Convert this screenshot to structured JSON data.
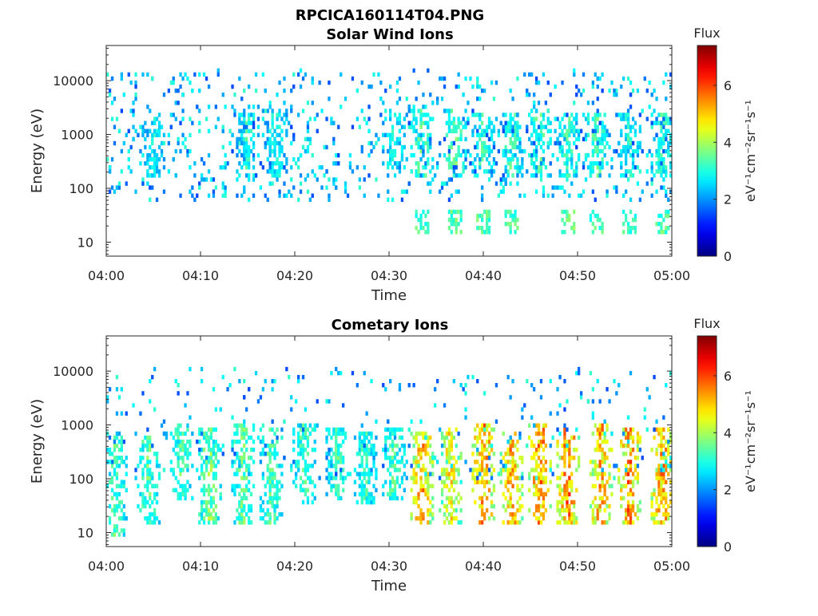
{
  "figure": {
    "filename_title": "RPCICA160114T04.PNG"
  },
  "colorbar": {
    "label": "Flux",
    "units": "eV⁻¹cm⁻²sr⁻¹s⁻¹",
    "ticks": [
      "0",
      "2",
      "4",
      "6"
    ],
    "range": [
      0,
      7.4
    ],
    "colormap": "jet"
  },
  "chart_data": [
    {
      "type": "heatmap",
      "title": "Solar Wind Ions",
      "xlabel": "Time",
      "ylabel": "Energy (eV)",
      "x_tick_labels": [
        "04:00",
        "04:10",
        "04:20",
        "04:30",
        "04:40",
        "04:50",
        "05:00"
      ],
      "y_tick_labels": [
        "10",
        "100",
        "1000",
        "10000"
      ],
      "xlim_minutes": [
        0,
        60
      ],
      "ylim": [
        5.5,
        45000
      ],
      "yscale": "log",
      "value_label": "log10 flux",
      "clim": [
        0,
        7.4
      ],
      "bursts": [
        {
          "t": 5.0,
          "e_lo": 150,
          "e_hi": 2000,
          "level": 3.0
        },
        {
          "t": 15.0,
          "e_lo": 150,
          "e_hi": 2500,
          "level": 3.3
        },
        {
          "t": 18.0,
          "e_lo": 150,
          "e_hi": 3000,
          "level": 3.1
        },
        {
          "t": 30.5,
          "e_lo": 200,
          "e_hi": 2500,
          "level": 3.2
        },
        {
          "t": 33.5,
          "e_lo": 150,
          "e_hi": 3000,
          "level": 3.6
        },
        {
          "t": 37.0,
          "e_lo": 150,
          "e_hi": 3000,
          "level": 3.7
        },
        {
          "t": 40.0,
          "e_lo": 150,
          "e_hi": 2500,
          "level": 3.4
        },
        {
          "t": 43.0,
          "e_lo": 150,
          "e_hi": 2500,
          "level": 3.5
        },
        {
          "t": 46.0,
          "e_lo": 150,
          "e_hi": 2500,
          "level": 3.6
        },
        {
          "t": 49.0,
          "e_lo": 150,
          "e_hi": 2500,
          "level": 3.4
        },
        {
          "t": 52.0,
          "e_lo": 150,
          "e_hi": 2500,
          "level": 3.6
        },
        {
          "t": 55.5,
          "e_lo": 150,
          "e_hi": 2500,
          "level": 3.3
        },
        {
          "t": 59.0,
          "e_lo": 150,
          "e_hi": 2500,
          "level": 3.4
        }
      ],
      "low_energy_bursts": [
        {
          "t": 33.5,
          "level": 3.4
        },
        {
          "t": 37.0,
          "level": 3.6
        },
        {
          "t": 40.0,
          "level": 3.5
        },
        {
          "t": 43.0,
          "level": 3.4
        },
        {
          "t": 49.0,
          "level": 3.7
        },
        {
          "t": 52.0,
          "level": 3.5
        },
        {
          "t": 55.5,
          "level": 3.3
        },
        {
          "t": 59.0,
          "level": 3.5
        }
      ]
    },
    {
      "type": "heatmap",
      "title": "Cometary Ions",
      "xlabel": "Time",
      "ylabel": "Energy (eV)",
      "x_tick_labels": [
        "04:00",
        "04:10",
        "04:20",
        "04:30",
        "04:40",
        "04:50",
        "05:00"
      ],
      "y_tick_labels": [
        "10",
        "100",
        "1000",
        "10000"
      ],
      "xlim_minutes": [
        0,
        60
      ],
      "ylim": [
        5.5,
        45000
      ],
      "yscale": "log",
      "value_label": "log10 flux",
      "clim": [
        0,
        7.4
      ],
      "bursts": [
        {
          "t": 1.0,
          "e_lo": 8,
          "e_hi": 700,
          "level": 3.6
        },
        {
          "t": 4.5,
          "e_lo": 12,
          "e_hi": 600,
          "level": 3.7
        },
        {
          "t": 8.0,
          "e_lo": 40,
          "e_hi": 1000,
          "level": 3.6
        },
        {
          "t": 11.0,
          "e_lo": 12,
          "e_hi": 800,
          "level": 4.0
        },
        {
          "t": 14.5,
          "e_lo": 12,
          "e_hi": 900,
          "level": 3.8
        },
        {
          "t": 17.5,
          "e_lo": 12,
          "e_hi": 800,
          "level": 3.7
        },
        {
          "t": 21.0,
          "e_lo": 30,
          "e_hi": 900,
          "level": 3.6
        },
        {
          "t": 24.5,
          "e_lo": 40,
          "e_hi": 800,
          "level": 3.5
        },
        {
          "t": 27.5,
          "e_lo": 30,
          "e_hi": 700,
          "level": 3.4
        },
        {
          "t": 30.5,
          "e_lo": 40,
          "e_hi": 800,
          "level": 3.6
        },
        {
          "t": 33.5,
          "e_lo": 12,
          "e_hi": 700,
          "level": 5.6
        },
        {
          "t": 36.5,
          "e_lo": 12,
          "e_hi": 800,
          "level": 5.0
        },
        {
          "t": 40.0,
          "e_lo": 12,
          "e_hi": 900,
          "level": 5.8
        },
        {
          "t": 43.0,
          "e_lo": 12,
          "e_hi": 800,
          "level": 5.6
        },
        {
          "t": 46.0,
          "e_lo": 12,
          "e_hi": 900,
          "level": 5.9
        },
        {
          "t": 49.0,
          "e_lo": 12,
          "e_hi": 800,
          "level": 5.9
        },
        {
          "t": 52.5,
          "e_lo": 12,
          "e_hi": 900,
          "level": 5.6
        },
        {
          "t": 55.5,
          "e_lo": 12,
          "e_hi": 800,
          "level": 5.8
        },
        {
          "t": 59.0,
          "e_lo": 12,
          "e_hi": 800,
          "level": 5.7
        }
      ]
    }
  ]
}
